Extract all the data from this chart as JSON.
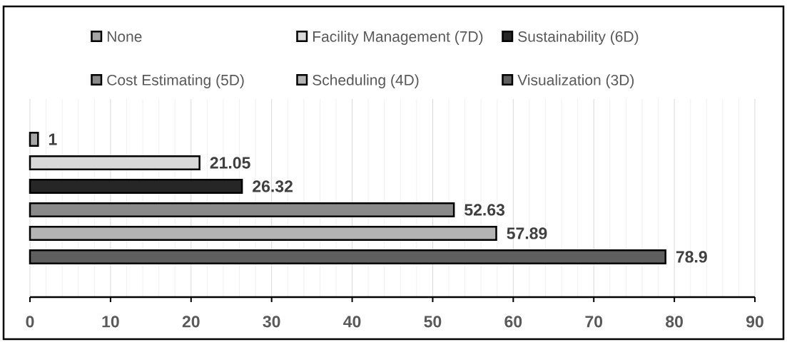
{
  "chart_data": {
    "type": "bar",
    "orientation": "horizontal",
    "categories": [
      null
    ],
    "series": [
      {
        "name": "None",
        "color": "#a6a6a6",
        "values": [
          1
        ]
      },
      {
        "name": "Facility Management (7D)",
        "color": "#d9d9d9",
        "values": [
          21.05
        ]
      },
      {
        "name": "Sustainability (6D)",
        "color": "#262626",
        "values": [
          26.32
        ]
      },
      {
        "name": "Cost Estimating (5D)",
        "color": "#8a8a8a",
        "values": [
          52.63
        ]
      },
      {
        "name": "Scheduling (4D)",
        "color": "#b4b4b4",
        "values": [
          57.89
        ]
      },
      {
        "name": "Visualization (3D)",
        "color": "#5f5f5f",
        "values": [
          78.9
        ]
      }
    ],
    "xlim": [
      0,
      90
    ],
    "xticks": [
      0,
      10,
      20,
      30,
      40,
      50,
      60,
      70,
      80,
      90
    ],
    "grid": "x",
    "legend": "top",
    "data_labels": true
  }
}
